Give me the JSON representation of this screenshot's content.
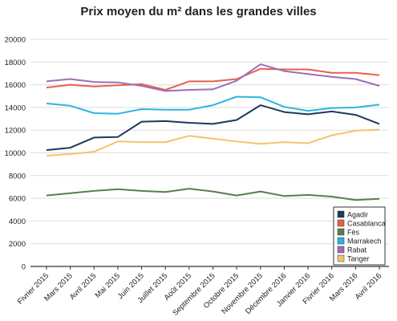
{
  "chart_data": {
    "type": "line",
    "title": "Prix moyen du m² dans les grandes villes",
    "xlabel": "",
    "ylabel": "",
    "ylim": [
      0,
      20000
    ],
    "yticks": [
      "0",
      "2000",
      "4000",
      "6000",
      "8000",
      "10000",
      "12000",
      "14000",
      "16000",
      "18000",
      "20000"
    ],
    "categories": [
      "Fivrier 2015",
      "Mars 2015",
      "Avril 2015",
      "Mai 2015",
      "Juin 2015",
      "Juillet 2015",
      "Août 2015",
      "Septembre 2015",
      "Octobre 2015",
      "Novembre 2015",
      "Décembre 2016",
      "Janvier 2016",
      "Fivrier 2016",
      "Mars 2016",
      "Avril 2016"
    ],
    "grid": true,
    "legend_position": "bottom-right",
    "series": [
      {
        "name": "Agadir",
        "color": "#1b3a5c",
        "values": [
          10250,
          10450,
          11350,
          11400,
          12750,
          12800,
          12650,
          12550,
          12900,
          14200,
          13600,
          13400,
          13650,
          13350,
          12550
        ]
      },
      {
        "name": "Casablanca",
        "color": "#e8604c",
        "values": [
          15750,
          16000,
          15850,
          15950,
          16050,
          15550,
          16300,
          16300,
          16500,
          17400,
          17350,
          17350,
          17050,
          17050,
          16850
        ]
      },
      {
        "name": "Fès",
        "color": "#5a7d52",
        "values": [
          6250,
          6450,
          6650,
          6800,
          6650,
          6550,
          6850,
          6600,
          6250,
          6600,
          6200,
          6300,
          6150,
          5850,
          5950
        ]
      },
      {
        "name": "Marrakech",
        "color": "#2bb5e0",
        "values": [
          14350,
          14150,
          13500,
          13450,
          13850,
          13800,
          13800,
          14200,
          14950,
          14900,
          14050,
          13700,
          13950,
          14000,
          14250
        ]
      },
      {
        "name": "Rabat",
        "color": "#9b6fb5",
        "values": [
          16300,
          16500,
          16250,
          16200,
          15900,
          15450,
          15550,
          15600,
          16350,
          17800,
          17200,
          16950,
          16700,
          16500,
          15900
        ]
      },
      {
        "name": "Tanger",
        "color": "#f2c46d",
        "values": [
          9750,
          9900,
          10100,
          11000,
          10950,
          10950,
          11500,
          11250,
          11000,
          10800,
          10950,
          10850,
          11550,
          11950,
          12050
        ]
      }
    ]
  }
}
